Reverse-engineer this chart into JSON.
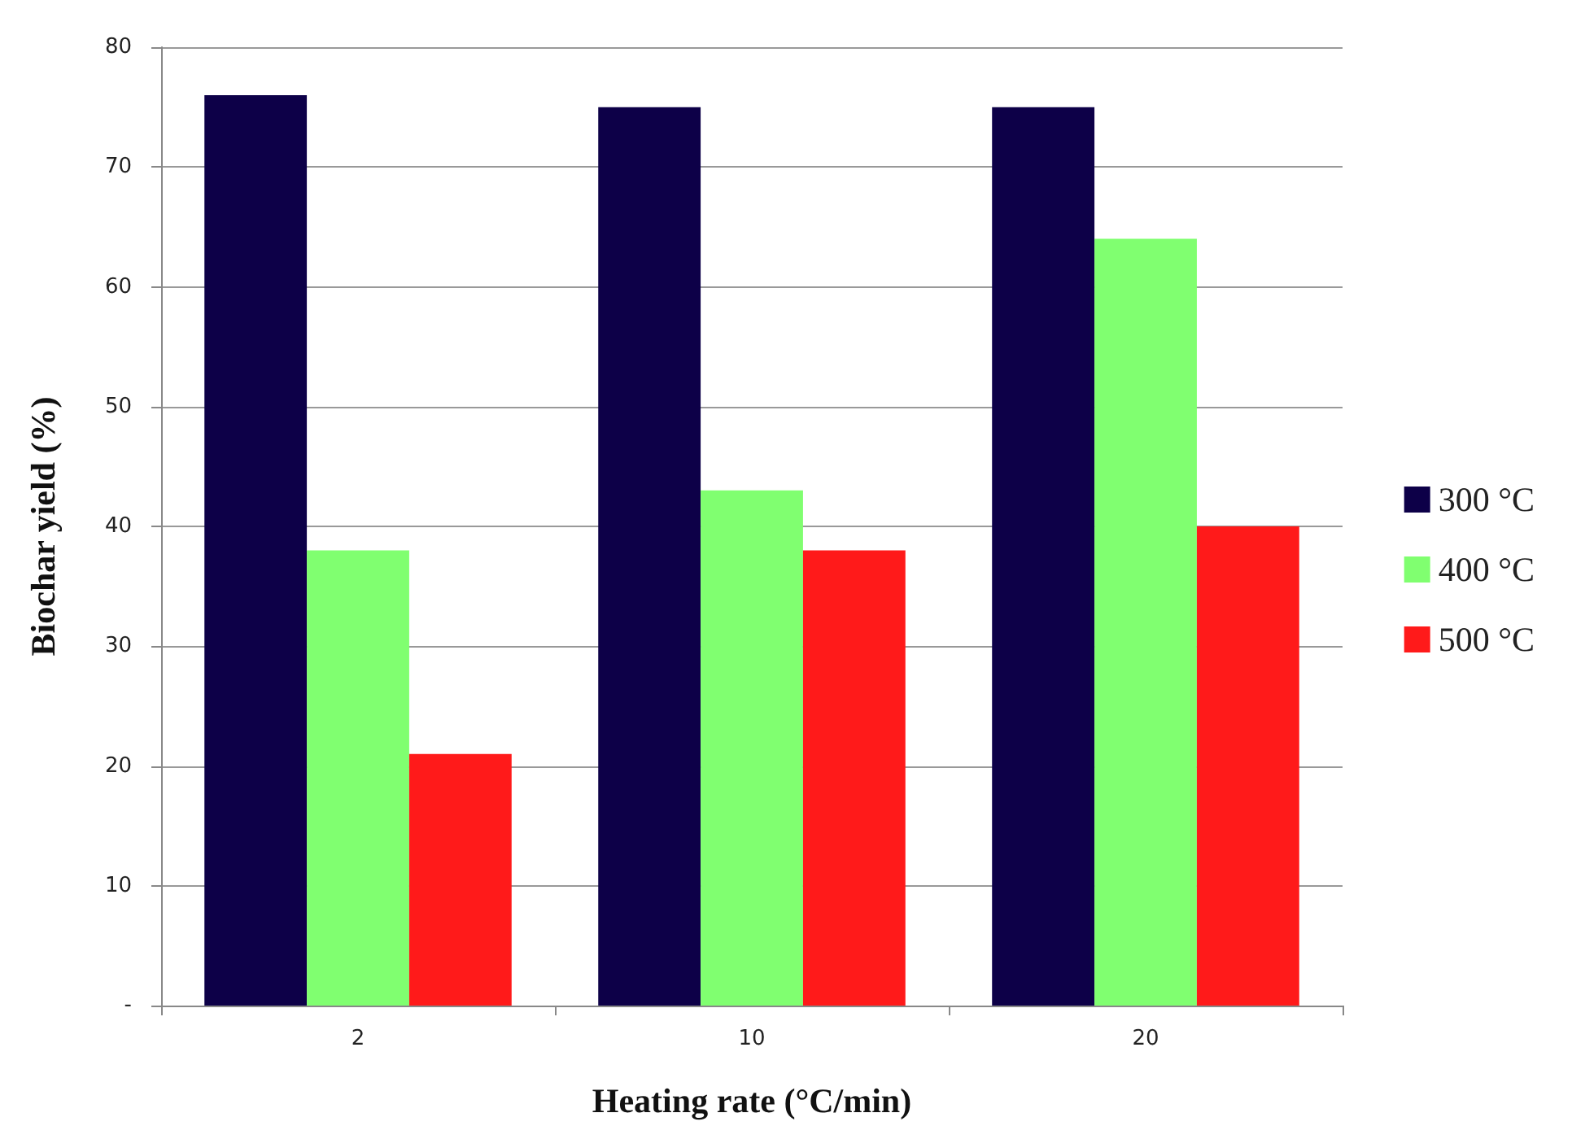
{
  "chart_data": {
    "type": "bar",
    "xlabel": "Heating rate (°C/min)",
    "ylabel": "Biochar yield (%)",
    "categories": [
      "2",
      "10",
      "20"
    ],
    "series": [
      {
        "name": "300 °C",
        "color": "#0d0048",
        "values": [
          76,
          75,
          75
        ]
      },
      {
        "name": "400 °C",
        "color": "#80ff70",
        "values": [
          38,
          43,
          64
        ]
      },
      {
        "name": "500 °C",
        "color": "#ff1a1a",
        "values": [
          21,
          38,
          40
        ]
      }
    ],
    "ylim": [
      0,
      80
    ],
    "yticks": [
      {
        "value": 0,
        "label": "-"
      },
      10,
      20,
      30,
      40,
      50,
      60,
      70,
      80
    ],
    "grid": "y",
    "legend": "right"
  }
}
